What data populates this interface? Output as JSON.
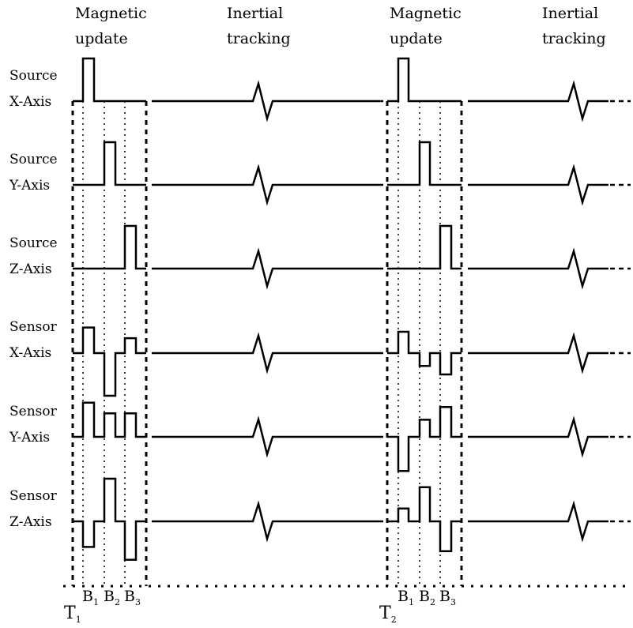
{
  "headers": [
    {
      "line1": "Magnetic",
      "line2": "update"
    },
    {
      "line1": "Inertial",
      "line2": "tracking"
    },
    {
      "line1": "Magnetic",
      "line2": "update"
    },
    {
      "line1": "Inertial",
      "line2": "tracking"
    }
  ],
  "rows": [
    {
      "line1": "Source",
      "line2": "X-Axis",
      "w1": [
        1,
        0,
        0
      ],
      "w2": [
        1,
        0,
        0
      ]
    },
    {
      "line1": "Source",
      "line2": "Y-Axis",
      "w1": [
        0,
        1,
        0
      ],
      "w2": [
        0,
        1,
        0
      ]
    },
    {
      "line1": "Source",
      "line2": "Z-Axis",
      "w1": [
        0,
        0,
        1
      ],
      "w2": [
        0,
        0,
        1
      ]
    },
    {
      "line1": "Sensor",
      "line2": "X-Axis",
      "w1": [
        0.6,
        -1,
        0.35
      ],
      "w2": [
        0.5,
        -0.3,
        -0.5
      ]
    },
    {
      "line1": "Sensor",
      "line2": "Y-Axis",
      "w1": [
        0.8,
        0.55,
        0.55
      ],
      "w2": [
        -0.8,
        0.4,
        0.7
      ]
    },
    {
      "line1": "Sensor",
      "line2": "Z-Axis",
      "w1": [
        -0.6,
        1,
        -0.9
      ],
      "w2": [
        0.3,
        0.8,
        -0.7
      ]
    }
  ],
  "b_labels": [
    {
      "letter": "B",
      "sub": "1"
    },
    {
      "letter": "B",
      "sub": "2"
    },
    {
      "letter": "B",
      "sub": "3"
    }
  ],
  "t_labels": [
    {
      "letter": "T",
      "sub": "1"
    },
    {
      "letter": "T",
      "sub": "2"
    }
  ]
}
